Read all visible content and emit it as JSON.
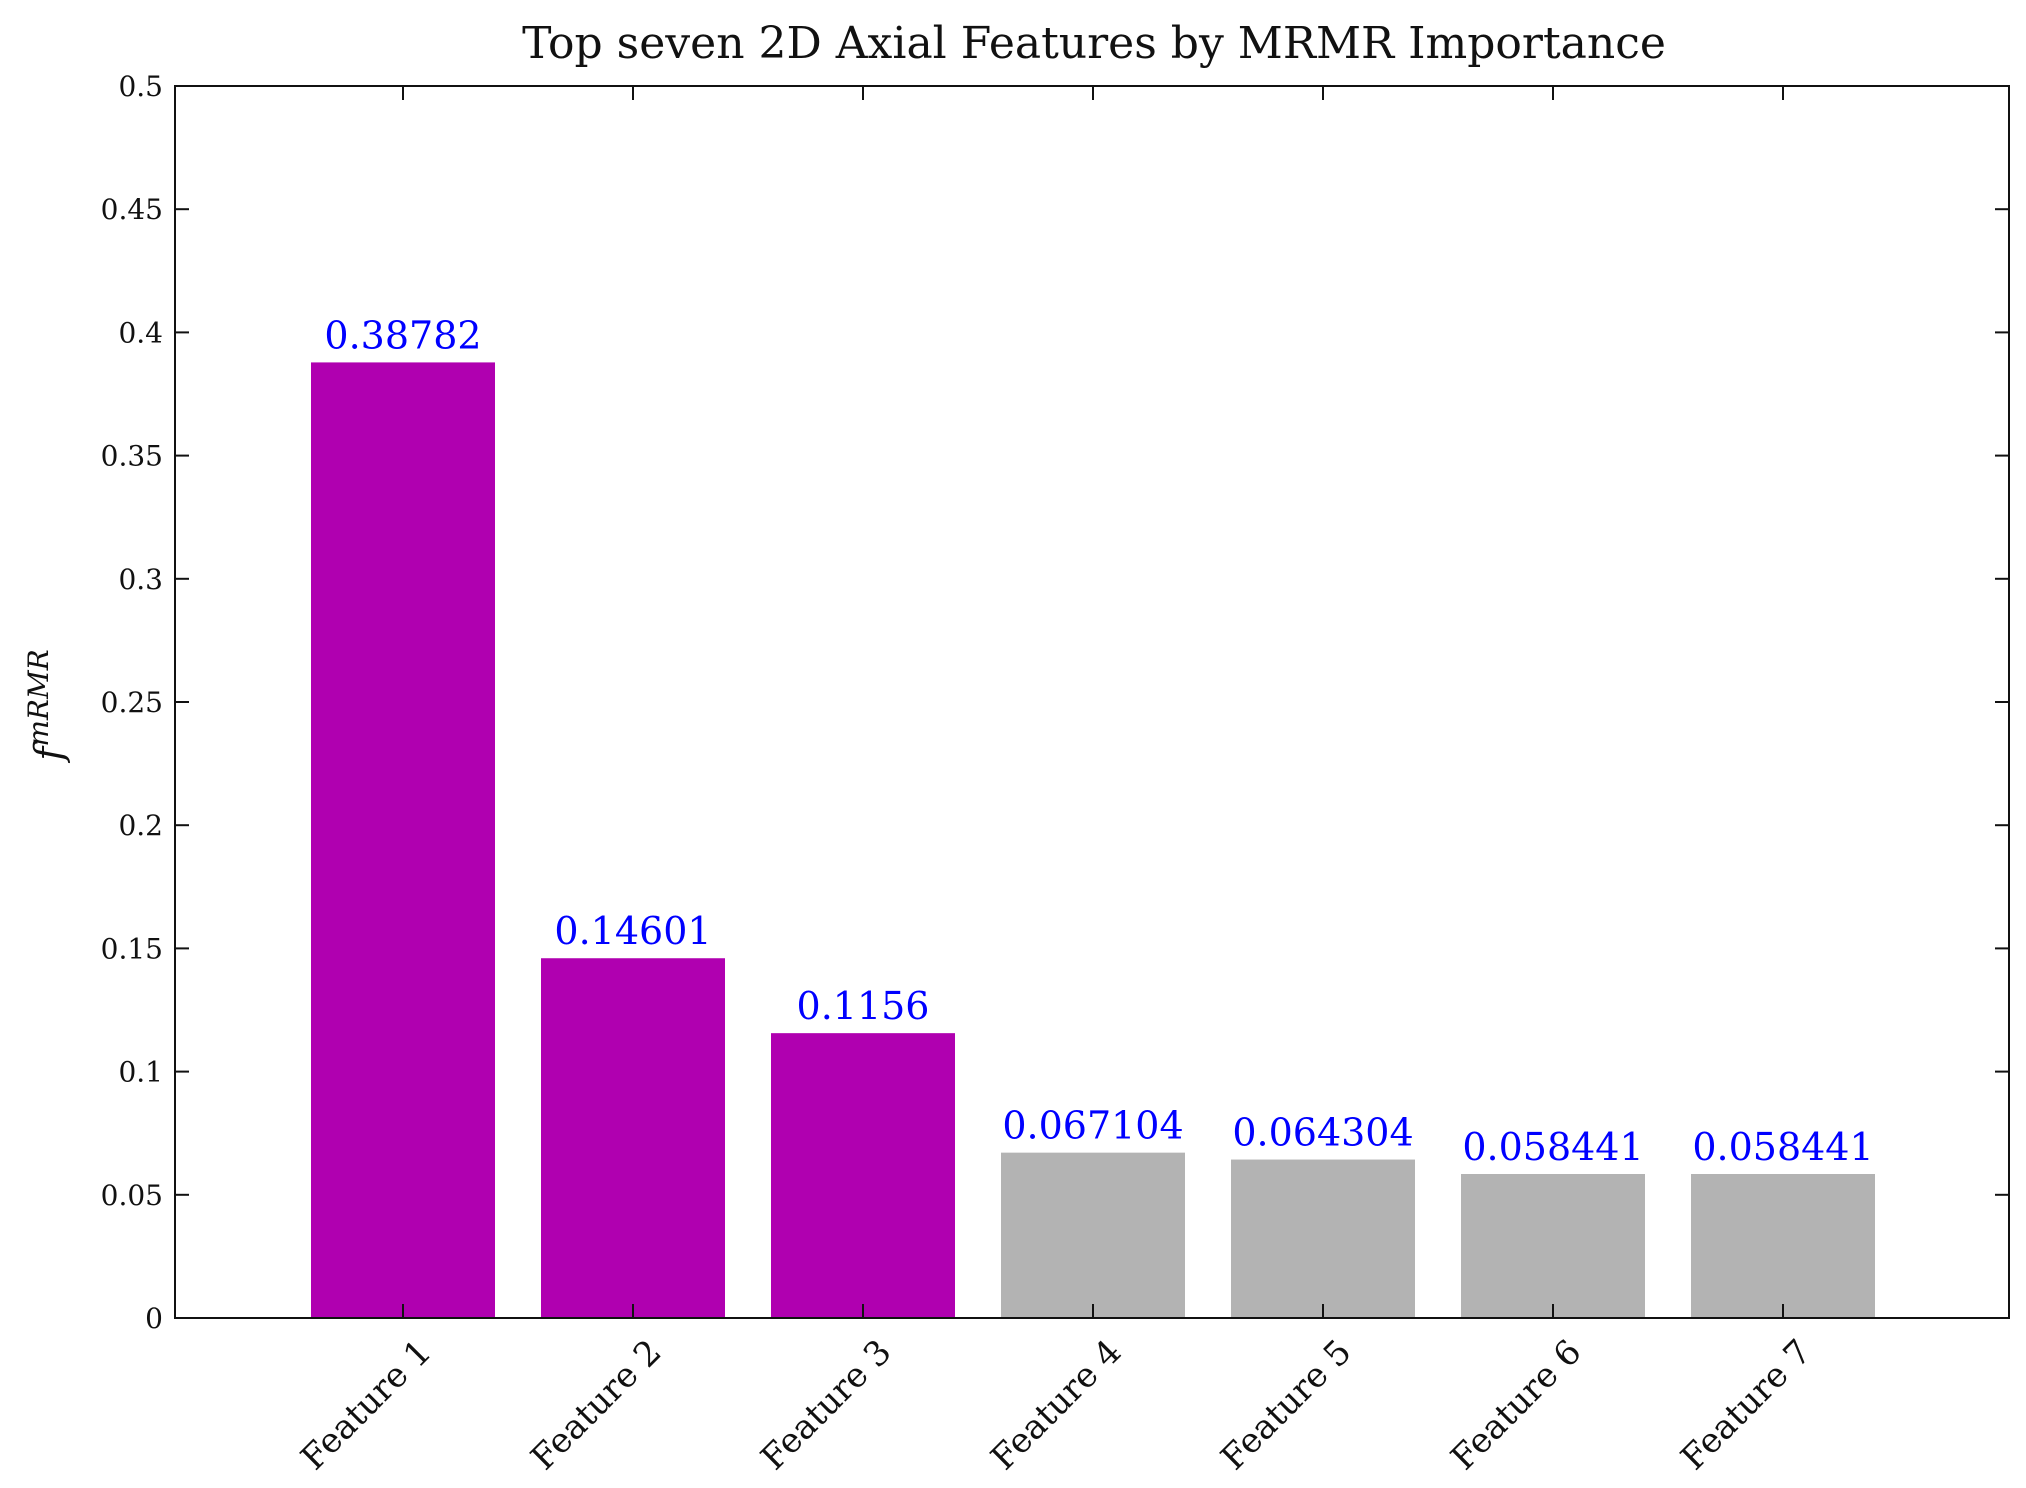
{
  "chart_data": {
    "type": "bar",
    "title": "Top seven 2D Axial Features by MRMR Importance",
    "xlabel": "",
    "ylabel": "f^mRMR",
    "categories": [
      "Feature 1",
      "Feature 2",
      "Feature 3",
      "Feature 4",
      "Feature 5",
      "Feature 6",
      "Feature 7"
    ],
    "values": [
      0.38782,
      0.14601,
      0.1156,
      0.067104,
      0.064304,
      0.058441,
      0.058441
    ],
    "data_labels": [
      "0.38782",
      "0.14601",
      "0.1156",
      "0.067104",
      "0.064304",
      "0.058441",
      "0.058441"
    ],
    "ylim": [
      0,
      0.5
    ],
    "yticks": [
      0,
      0.05,
      0.1,
      0.15,
      0.2,
      0.25,
      0.3,
      0.35,
      0.4,
      0.45,
      0.5
    ],
    "ytick_labels": [
      "0",
      "0.05",
      "0.1",
      "0.15",
      "0.2",
      "0.25",
      "0.3",
      "0.35",
      "0.4",
      "0.45",
      "0.5"
    ],
    "highlighted_count": 3,
    "colors": {
      "highlight": "#b000b0",
      "other": "#b3b3b3",
      "data_label": "#0000ff",
      "axis": "#111111"
    },
    "grid": false,
    "legend": "none"
  }
}
